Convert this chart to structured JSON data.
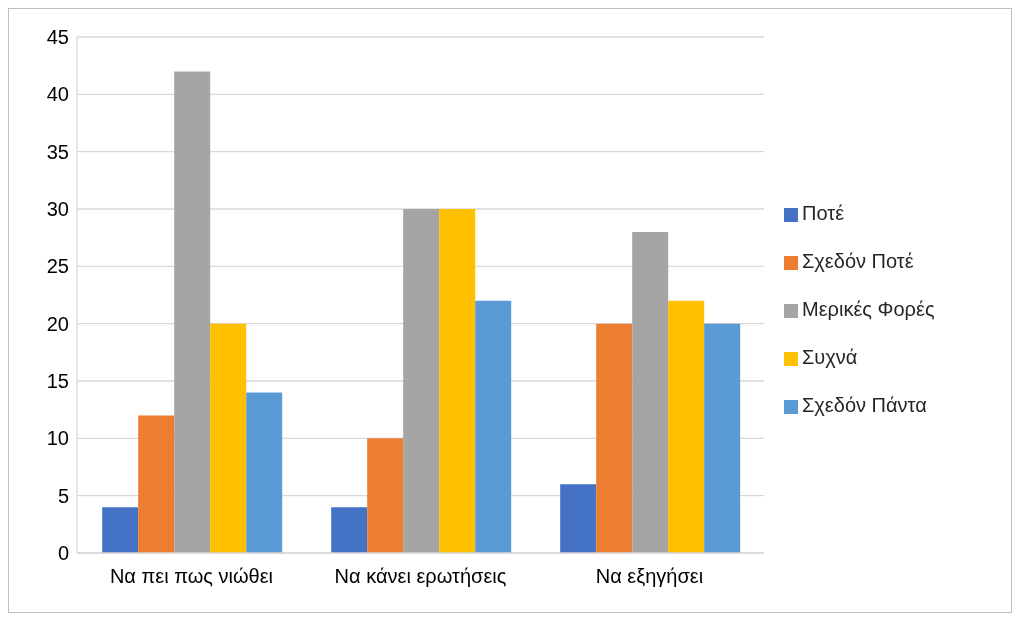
{
  "chart_data": {
    "type": "bar",
    "categories": [
      "Να πει πως νιώθει",
      "Να κάνει ερωτήσεις",
      "Να εξηγήσει"
    ],
    "series": [
      {
        "name": "Ποτέ",
        "color": "#4472c4",
        "values": [
          4,
          4,
          6
        ]
      },
      {
        "name": "Σχεδόν Ποτέ",
        "color": "#ed7d31",
        "values": [
          12,
          10,
          20
        ]
      },
      {
        "name": "Μερικές Φορές",
        "color": "#a5a5a5",
        "values": [
          42,
          30,
          28
        ]
      },
      {
        "name": "Συχνά",
        "color": "#ffc000",
        "values": [
          20,
          30,
          22
        ]
      },
      {
        "name": "Σχεδόν Πάντα",
        "color": "#5b9bd5",
        "values": [
          14,
          22,
          20
        ]
      }
    ],
    "ylim": [
      0,
      45
    ],
    "yticks": [
      0,
      5,
      10,
      15,
      20,
      25,
      30,
      35,
      40,
      45
    ],
    "grid": "y",
    "legend": "right"
  }
}
